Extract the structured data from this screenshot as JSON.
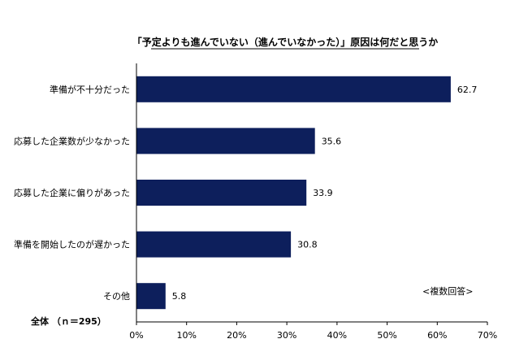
{
  "chart_data": {
    "type": "bar",
    "orientation": "horizontal",
    "title": "「予定よりも進んでいない（進んでいなかった）」原因は何だと思うか",
    "categories": [
      "準備が不十分だった",
      "応募した企業数が少なかった",
      "応募した企業に偏りがあった",
      "準備を開始したのが遅かった",
      "その他"
    ],
    "values": [
      62.7,
      35.6,
      33.9,
      30.8,
      5.8
    ],
    "data_labels": [
      "62.7",
      "35.6",
      "33.9",
      "30.8",
      "5.8"
    ],
    "xlim": [
      0,
      70
    ],
    "x_ticks": [
      "0%",
      "10%",
      "20%",
      "30%",
      "40%",
      "50%",
      "60%",
      "70%"
    ],
    "grid": false,
    "bar_color": "#0d1f5c",
    "note": "<複数回答>",
    "total_label": "全体 （ｎ＝295）"
  }
}
